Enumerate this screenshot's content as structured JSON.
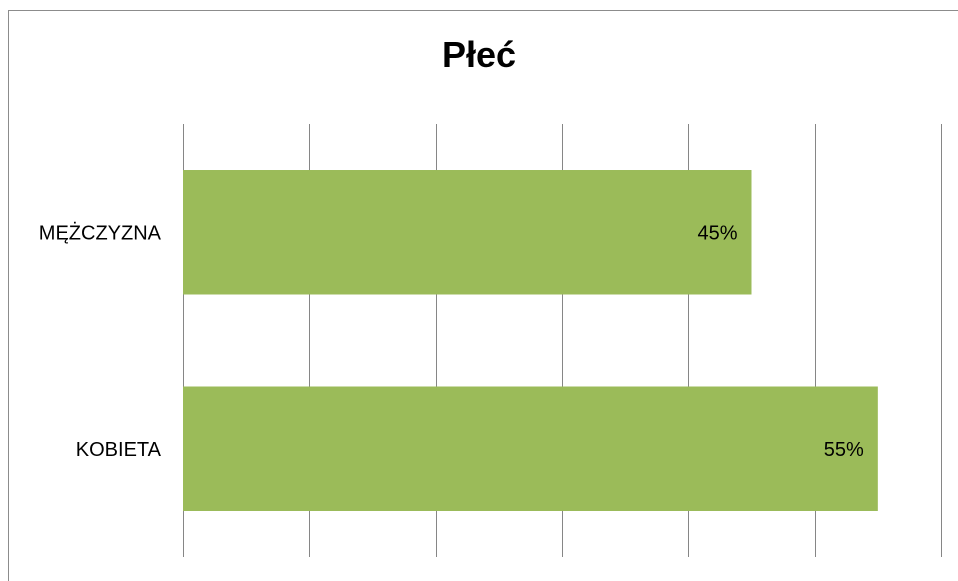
{
  "chart_data": {
    "type": "bar",
    "orientation": "horizontal",
    "title": "Płeć",
    "categories": [
      "MĘŻCZYZNA",
      "KOBIETA"
    ],
    "values": [
      45,
      55
    ],
    "data_labels": [
      "45%",
      "55%"
    ],
    "xlim": [
      0,
      60
    ],
    "xlabel": "",
    "ylabel": "",
    "grid": "vertical",
    "legend": "none",
    "bar_color": "#9bbb59"
  }
}
